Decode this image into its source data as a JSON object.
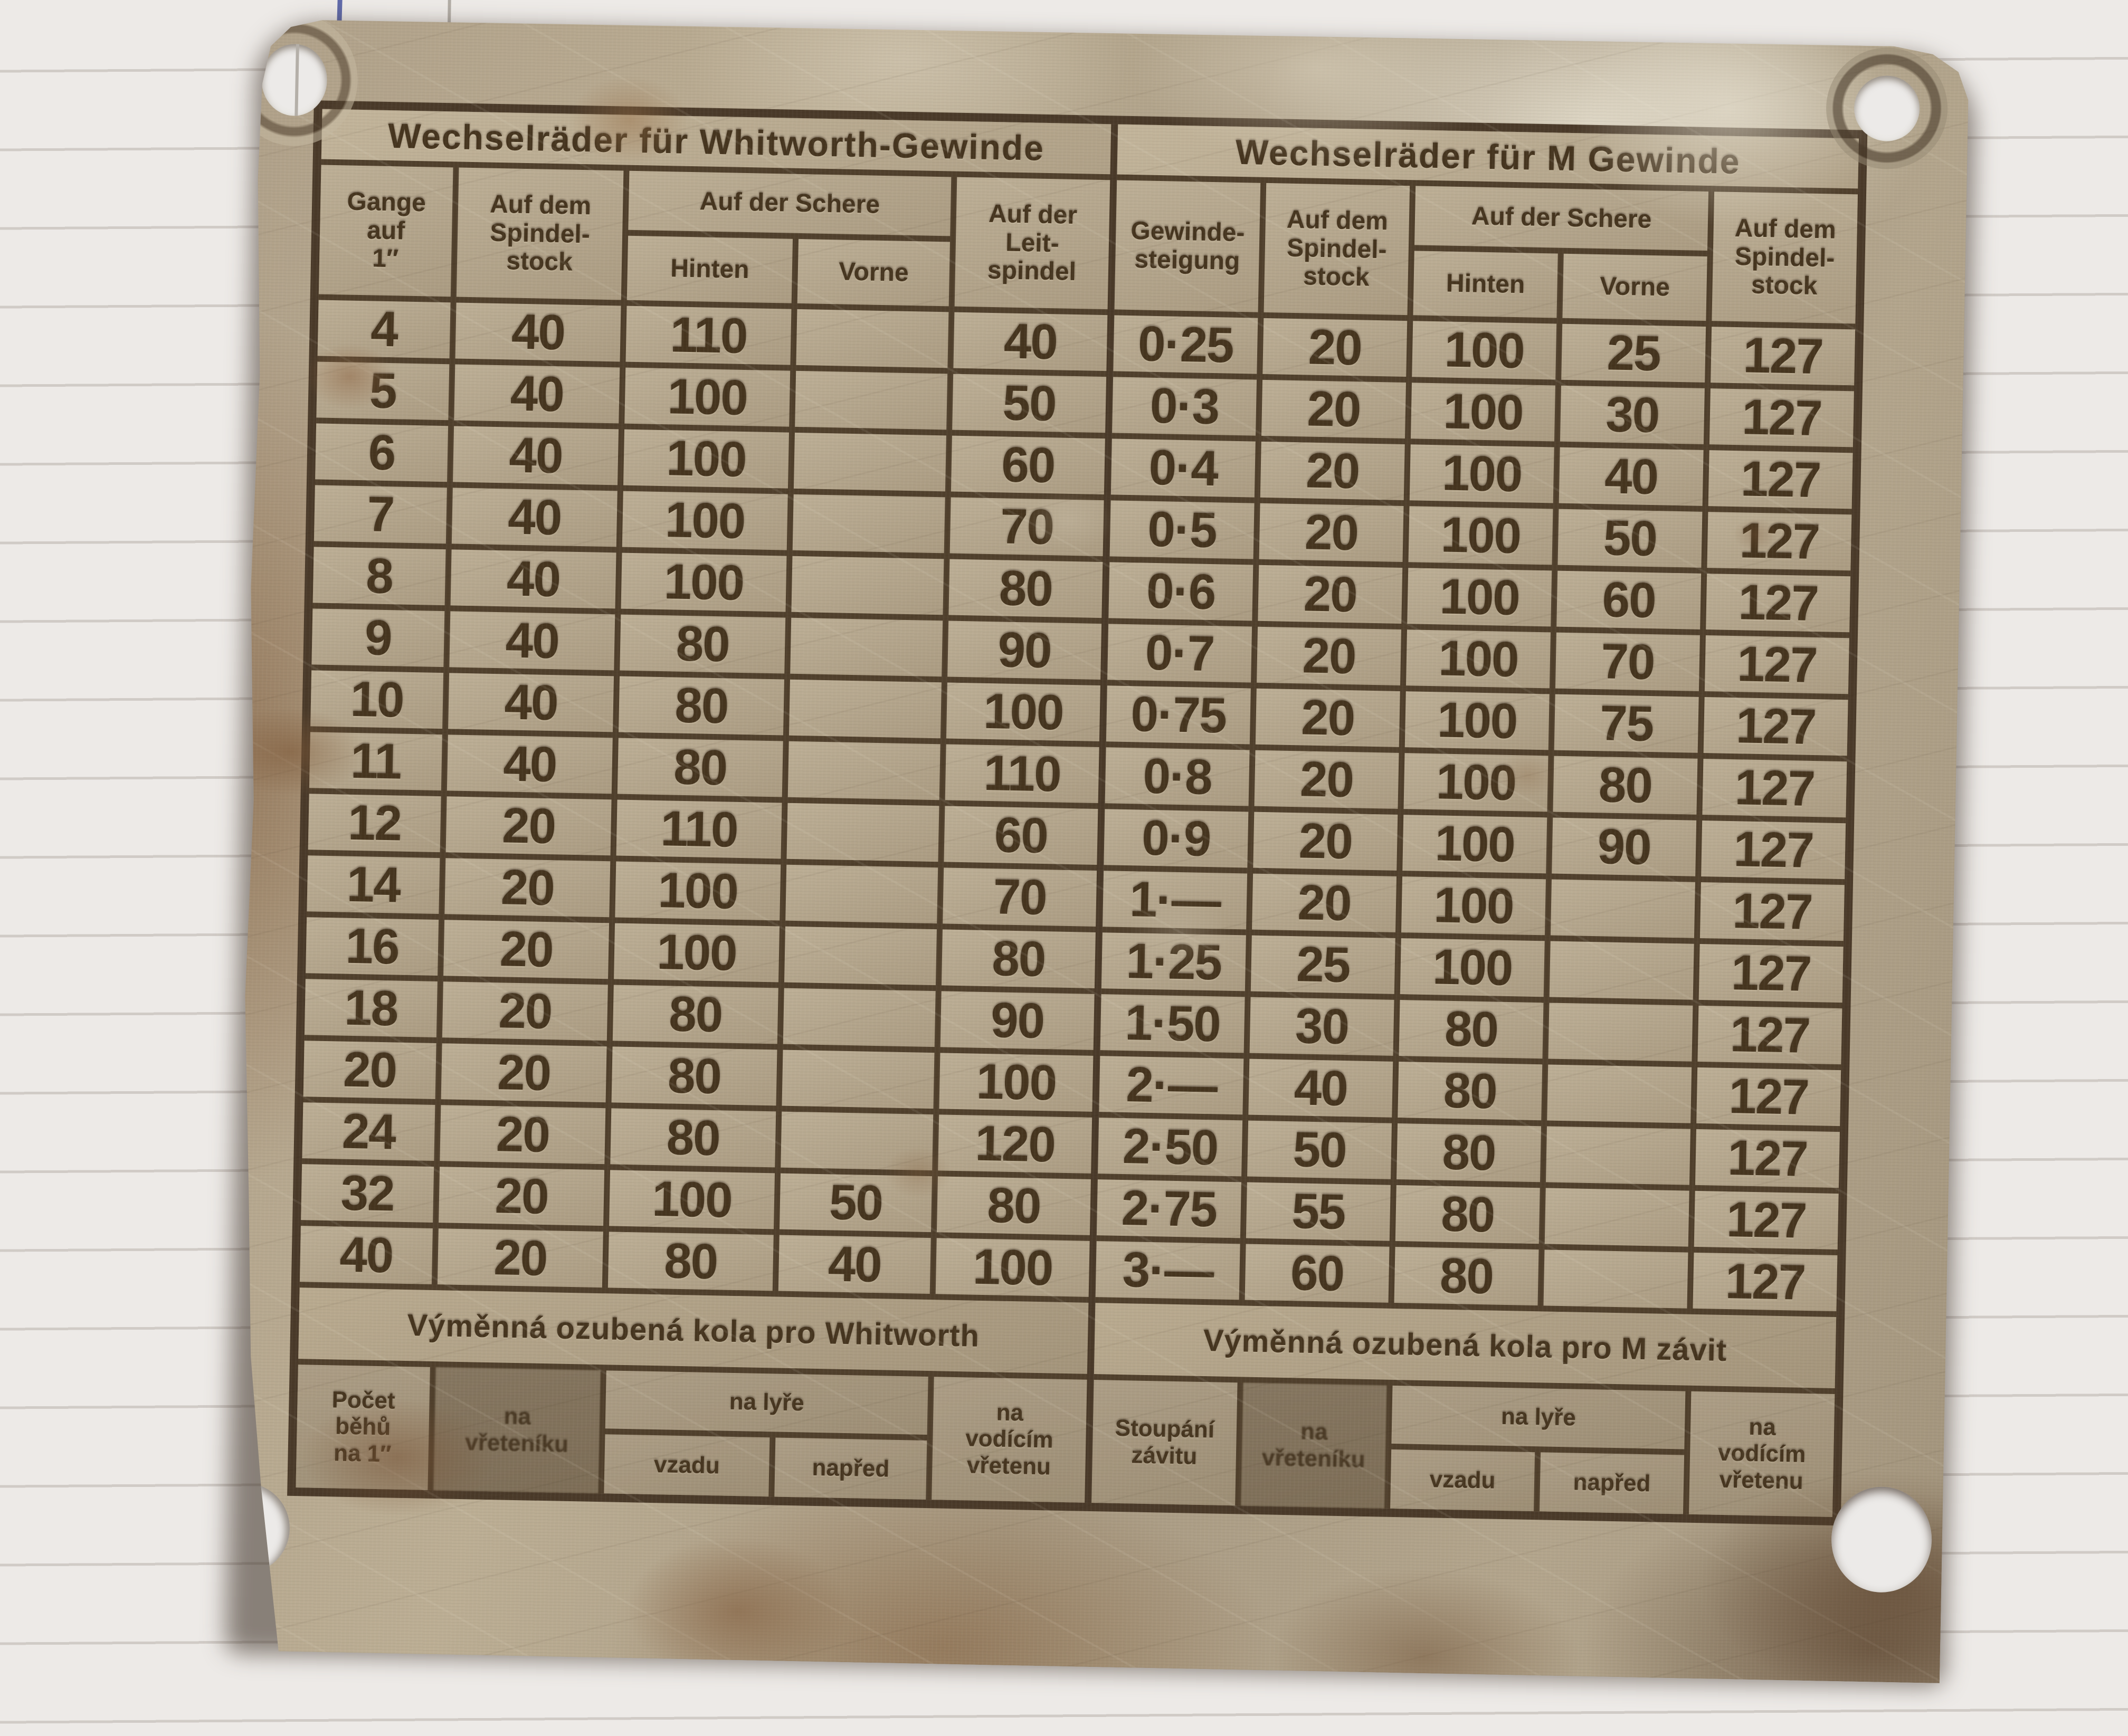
{
  "background": {
    "paper_color": "#edeae7",
    "ruled_line_color": "#c9c3be",
    "blue_pen_color": "#46549e"
  },
  "plate": {
    "metal_color": "#b0a189",
    "rust_color": "#8a6245",
    "engraving_color": "#4a3a29",
    "whitworth": {
      "title": "Wechselräder für Whitworth-Gewinde",
      "headers": {
        "gange": "Gange\nauf\n1″",
        "spindelstock": "Auf dem\nSpindel-\nstock",
        "schere": "Auf der Schere",
        "hinten": "Hinten",
        "vorne": "Vorne",
        "leitspindel": "Auf der\nLeit-\nspindel"
      },
      "rows": [
        [
          "4",
          "40",
          "110",
          "",
          "40"
        ],
        [
          "5",
          "40",
          "100",
          "",
          "50"
        ],
        [
          "6",
          "40",
          "100",
          "",
          "60"
        ],
        [
          "7",
          "40",
          "100",
          "",
          "70"
        ],
        [
          "8",
          "40",
          "100",
          "",
          "80"
        ],
        [
          "9",
          "40",
          "80",
          "",
          "90"
        ],
        [
          "10",
          "40",
          "80",
          "",
          "100"
        ],
        [
          "11",
          "40",
          "80",
          "",
          "110"
        ],
        [
          "12",
          "20",
          "110",
          "",
          "60"
        ],
        [
          "14",
          "20",
          "100",
          "",
          "70"
        ],
        [
          "16",
          "20",
          "100",
          "",
          "80"
        ],
        [
          "18",
          "20",
          "80",
          "",
          "90"
        ],
        [
          "20",
          "20",
          "80",
          "",
          "100"
        ],
        [
          "24",
          "20",
          "80",
          "",
          "120"
        ],
        [
          "32",
          "20",
          "100",
          "50",
          "80"
        ],
        [
          "40",
          "20",
          "80",
          "40",
          "100"
        ]
      ]
    },
    "metric": {
      "title": "Wechselräder für M Gewinde",
      "headers": {
        "steigung": "Gewinde-\nsteigung",
        "spindelstock": "Auf dem\nSpindel-\nstock",
        "schere": "Auf der Schere",
        "hinten": "Hinten",
        "vorne": "Vorne",
        "spindelstock2": "Auf dem\nSpindel-\nstock"
      },
      "rows": [
        [
          "0·25",
          "20",
          "100",
          "25",
          "127"
        ],
        [
          "0·3",
          "20",
          "100",
          "30",
          "127"
        ],
        [
          "0·4",
          "20",
          "100",
          "40",
          "127"
        ],
        [
          "0·5",
          "20",
          "100",
          "50",
          "127"
        ],
        [
          "0·6",
          "20",
          "100",
          "60",
          "127"
        ],
        [
          "0·7",
          "20",
          "100",
          "70",
          "127"
        ],
        [
          "0·75",
          "20",
          "100",
          "75",
          "127"
        ],
        [
          "0·8",
          "20",
          "100",
          "80",
          "127"
        ],
        [
          "0·9",
          "20",
          "100",
          "90",
          "127"
        ],
        [
          "1·—",
          "20",
          "100",
          "",
          "127"
        ],
        [
          "1·25",
          "25",
          "100",
          "",
          "127"
        ],
        [
          "1·50",
          "30",
          "80",
          "",
          "127"
        ],
        [
          "2·—",
          "40",
          "80",
          "",
          "127"
        ],
        [
          "2·50",
          "50",
          "80",
          "",
          "127"
        ],
        [
          "2·75",
          "55",
          "80",
          "",
          "127"
        ],
        [
          "3·—",
          "60",
          "80",
          "",
          "127"
        ]
      ]
    },
    "czech_whitworth": {
      "title": "Výměnná ozubená kola pro Whitworth",
      "headers": {
        "pocet": "Počet\nběhů\nna 1″",
        "vreteniku": "na\nvřeteníku",
        "lyre": "na lyře",
        "vzadu": "vzadu",
        "napred": "napřed",
        "vodicim": "na\nvodícím\nvřetenu"
      }
    },
    "czech_metric": {
      "title": "Výměnná ozubená kola pro M závit",
      "headers": {
        "stoupani": "Stoupání\nzávitu",
        "vreteniku": "na\nvřeteníku",
        "lyre": "na lyře",
        "vzadu": "vzadu",
        "napred": "napřed",
        "vodicim": "na\nvodícím\nvřetenu"
      }
    }
  }
}
